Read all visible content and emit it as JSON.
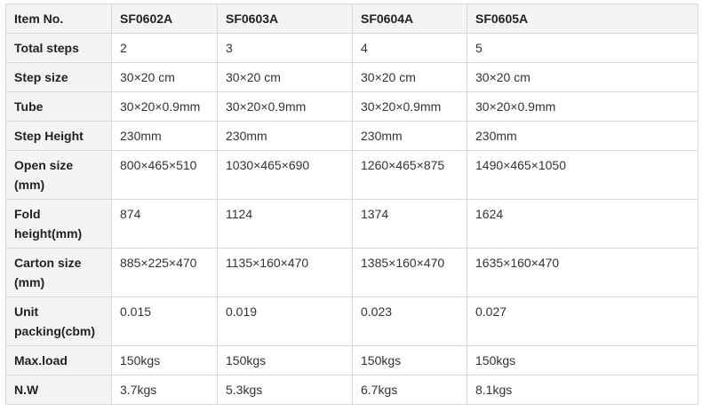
{
  "columns": [
    "Item No.",
    "SF0602A",
    "SF0603A",
    "SF0604A",
    "SF0605A"
  ],
  "rows": [
    {
      "label": "Total steps",
      "values": [
        "2",
        "3",
        "4",
        "5"
      ]
    },
    {
      "label": "Step size",
      "values": [
        "30×20 cm",
        "30×20 cm",
        "30×20 cm",
        "30×20 cm"
      ]
    },
    {
      "label": "Tube",
      "values": [
        "30×20×0.9mm",
        "30×20×0.9mm",
        "30×20×0.9mm",
        "30×20×0.9mm"
      ]
    },
    {
      "label": "Step Height",
      "values": [
        "230mm",
        "230mm",
        "230mm",
        "230mm"
      ]
    },
    {
      "label": "Open size (mm)",
      "values": [
        "800×465×510",
        "1030×465×690",
        "1260×465×875",
        "1490×465×1050"
      ]
    },
    {
      "label": "Fold height(mm)",
      "values": [
        "874",
        "1124",
        "1374",
        "1624"
      ]
    },
    {
      "label": "Carton size (mm)",
      "values": [
        "885×225×470",
        "1135×160×470",
        "1385×160×470",
        "1635×160×470"
      ]
    },
    {
      "label": "Unit packing(cbm)",
      "values": [
        "0.015",
        "0.019",
        "0.023",
        "0.027"
      ]
    },
    {
      "label": "Max.load",
      "values": [
        "150kgs",
        "150kgs",
        "150kgs",
        "150kgs"
      ]
    },
    {
      "label": "N.W",
      "values": [
        "3.7kgs",
        "5.3kgs",
        "6.7kgs",
        "8.1kgs"
      ]
    }
  ]
}
